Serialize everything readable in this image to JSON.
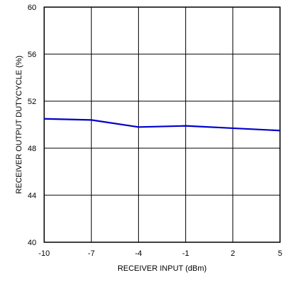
{
  "chart_data": {
    "type": "line",
    "xlabel": "RECEIVER INPUT (dBm)",
    "ylabel": "RECEIVER OUTPUT DUTYCYCLE (%)",
    "xlim": [
      -10,
      5
    ],
    "ylim": [
      40,
      60
    ],
    "x_ticks": [
      -10,
      -7,
      -4,
      -1,
      2,
      5
    ],
    "y_ticks": [
      40,
      44,
      48,
      52,
      56,
      60
    ],
    "grid": true,
    "series": [
      {
        "color": "#0000cc",
        "x": [
          -10,
          -7,
          -4,
          -1,
          2,
          5
        ],
        "values": [
          50.5,
          50.4,
          49.8,
          49.9,
          49.7,
          49.5
        ]
      }
    ]
  }
}
